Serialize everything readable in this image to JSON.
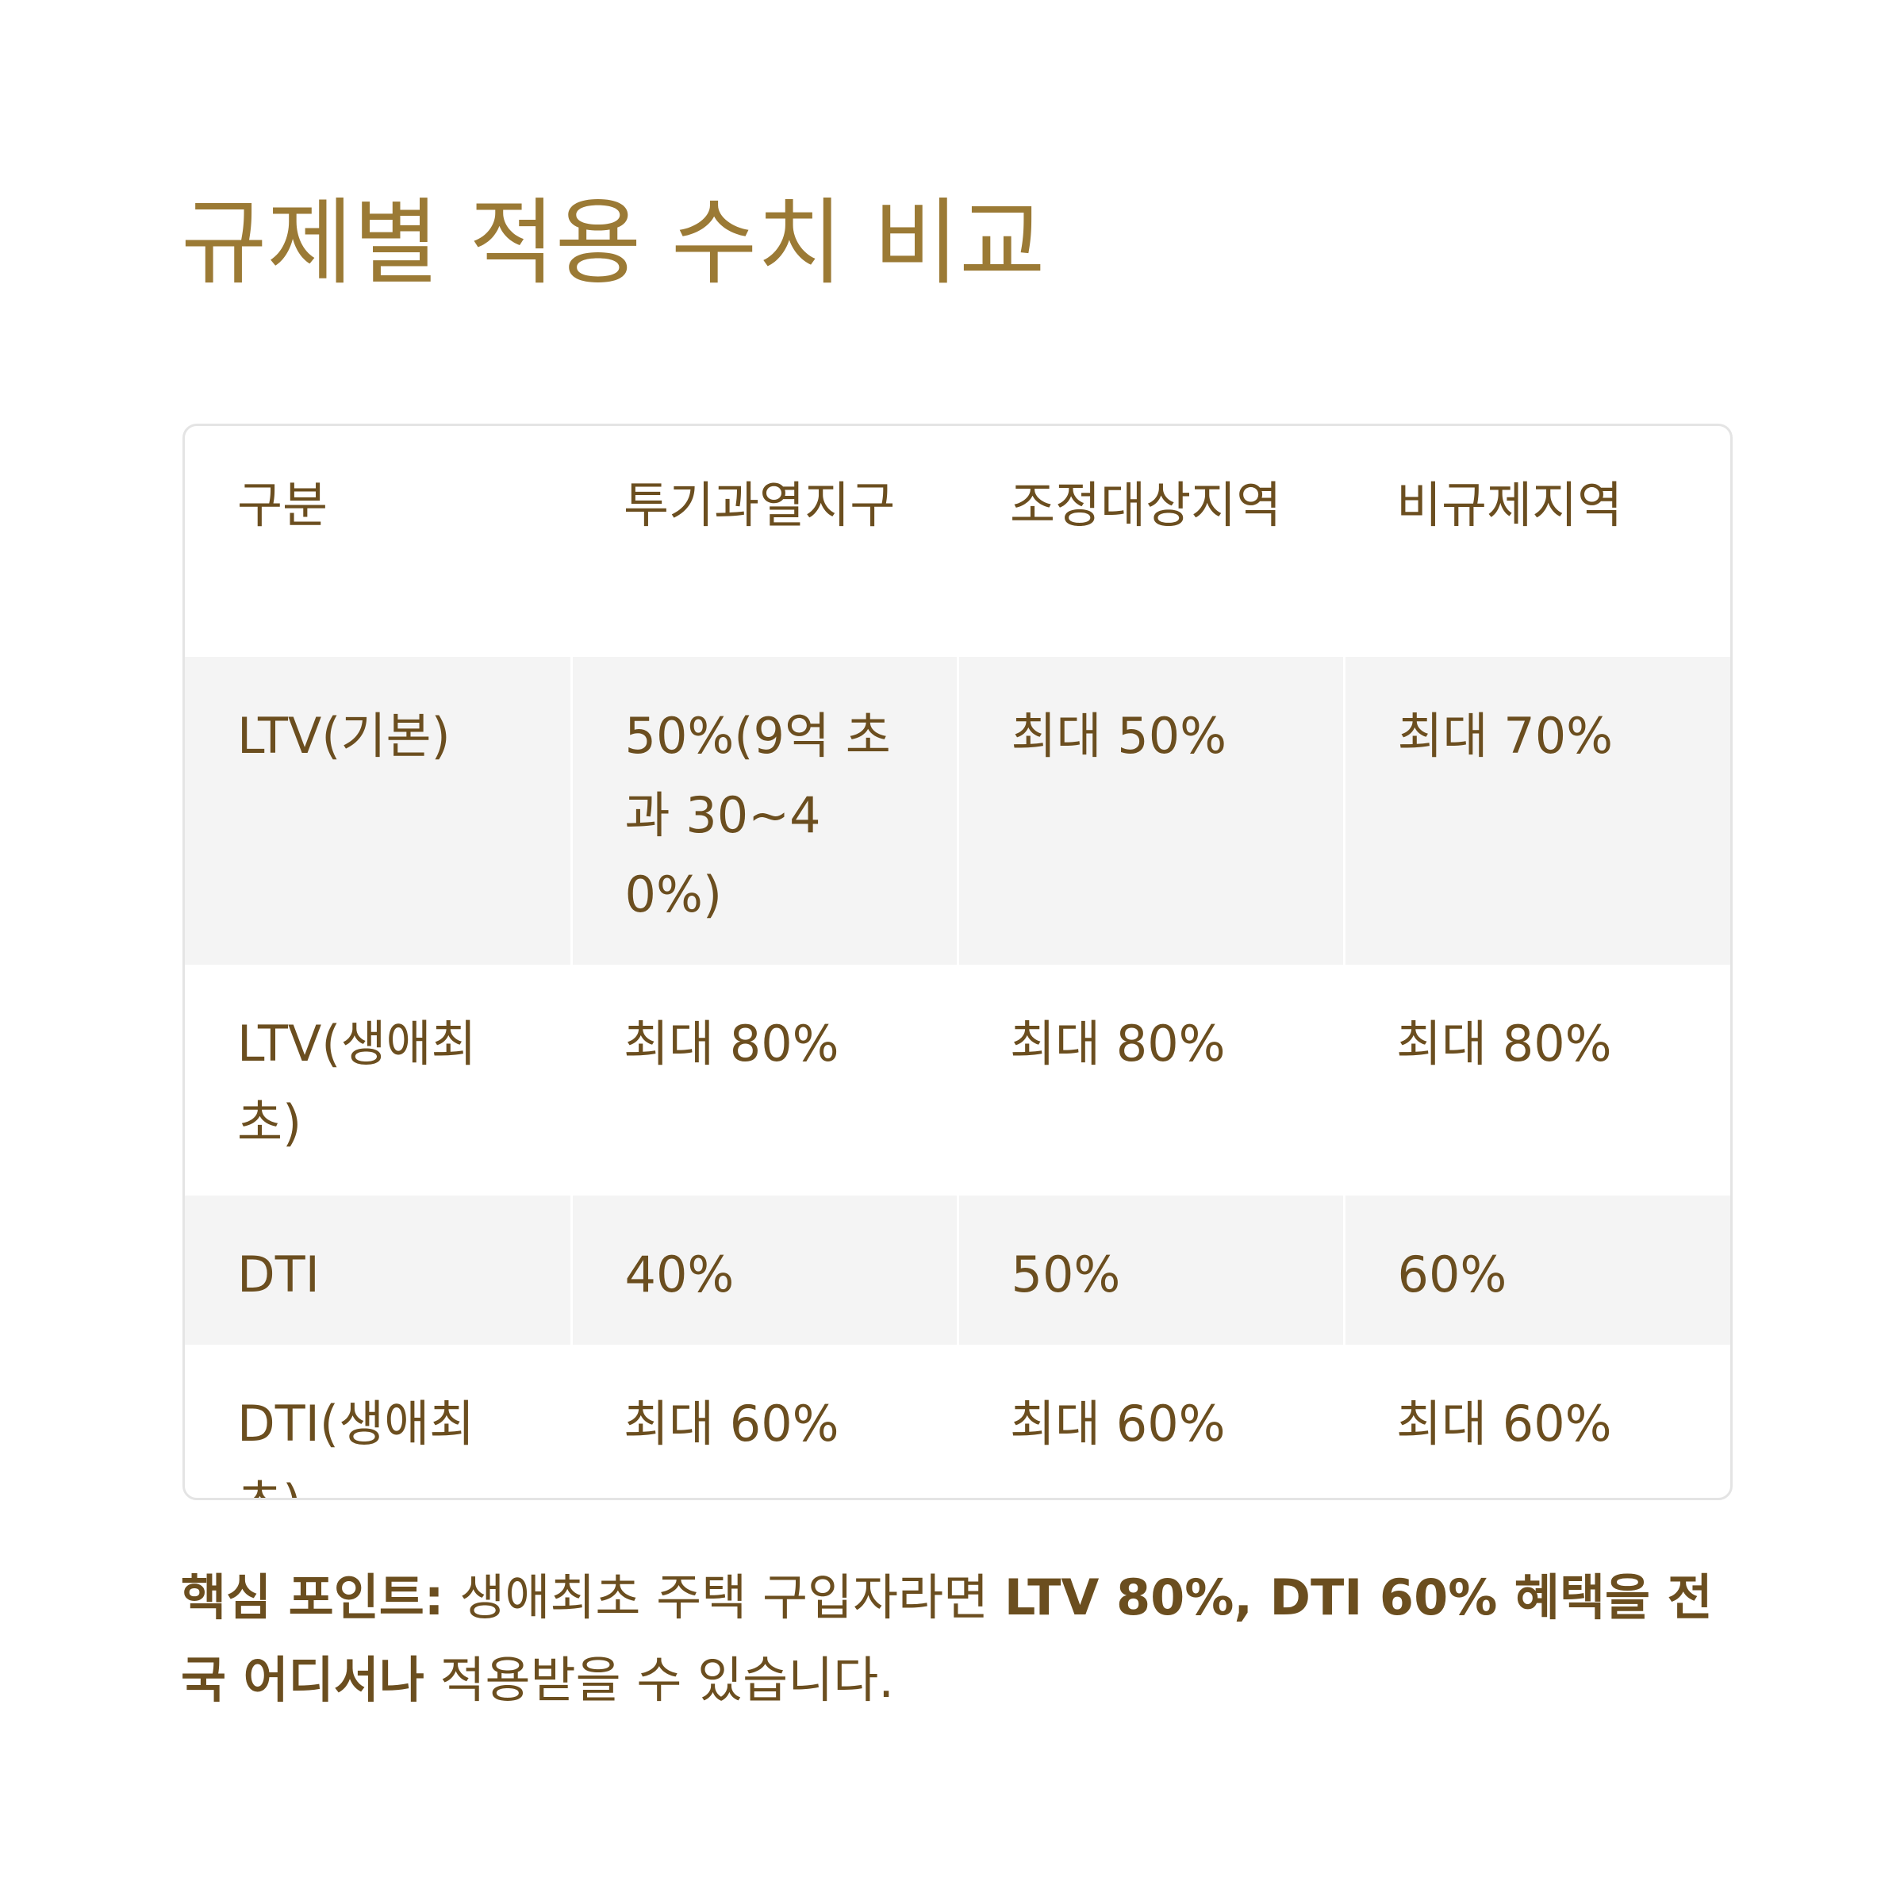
{
  "title": "규제별 적용 수치 비교",
  "table": {
    "headers": [
      "구분",
      "투기과열지구",
      "조정대상지역",
      "비규제지역"
    ],
    "rows": [
      [
        "LTV(기본)",
        "50%(9억 초과 30~40%)",
        "최대 50%",
        "최대 70%"
      ],
      [
        "LTV(생애최초)",
        "최대 80%",
        "최대 80%",
        "최대 80%"
      ],
      [
        "DTI",
        "40%",
        "50%",
        "60%"
      ],
      [
        "DTI(생애최초)",
        "최대 60%",
        "최대 60%",
        "최대 60%"
      ]
    ]
  },
  "note": {
    "label": "핵심 포인트:",
    "text_1": " 생애최초 주택 구입자라면 ",
    "highlight": "LTV 80%, DTI 60% 혜택을 전국 어디서나",
    "text_2": " 적용받을 수 있습니다."
  },
  "colors": {
    "title": "#9b7a35",
    "text": "#6b4e1f",
    "row_shade": "#f4f4f4",
    "border": "#e4e4e4"
  }
}
